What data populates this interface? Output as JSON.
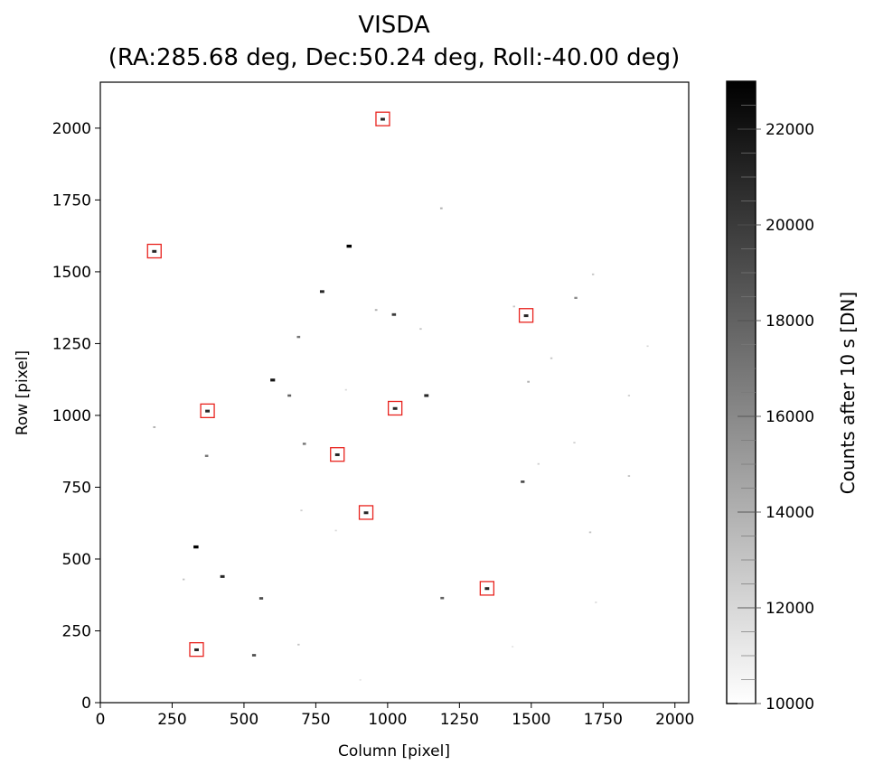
{
  "chart_data": {
    "type": "scatter",
    "title": "VISDA",
    "subtitle": "(RA:285.68 deg, Dec:50.24 deg, Roll:-40.00 deg)",
    "xlabel": "Column [pixel]",
    "ylabel": "Row [pixel]",
    "xlim": [
      0,
      2048
    ],
    "ylim": [
      0,
      2160
    ],
    "x_ticks": [
      0,
      250,
      500,
      750,
      1000,
      1250,
      1500,
      1750,
      2000
    ],
    "y_ticks": [
      0,
      250,
      500,
      750,
      1000,
      1250,
      1500,
      1750,
      2000
    ],
    "colorbar": {
      "label": "Counts after 10 s [DN]",
      "range": [
        10000,
        23000
      ],
      "ticks": [
        10000,
        12000,
        14000,
        16000,
        18000,
        20000,
        22000
      ],
      "colormap": "gray_r"
    },
    "marker_color": "#e8231e",
    "marked_stars": [
      {
        "x": 983,
        "y": 2032
      },
      {
        "x": 188,
        "y": 1572
      },
      {
        "x": 1482,
        "y": 1348
      },
      {
        "x": 373,
        "y": 1016
      },
      {
        "x": 1026,
        "y": 1025
      },
      {
        "x": 825,
        "y": 864
      },
      {
        "x": 925,
        "y": 662
      },
      {
        "x": 1346,
        "y": 398
      },
      {
        "x": 335,
        "y": 185
      }
    ],
    "stars": [
      {
        "x": 866,
        "y": 1590,
        "v": 23000
      },
      {
        "x": 772,
        "y": 1432,
        "v": 21000
      },
      {
        "x": 1022,
        "y": 1352,
        "v": 20000
      },
      {
        "x": 960,
        "y": 1368,
        "v": 14000
      },
      {
        "x": 690,
        "y": 1274,
        "v": 17000
      },
      {
        "x": 600,
        "y": 1124,
        "v": 22000
      },
      {
        "x": 658,
        "y": 1070,
        "v": 18000
      },
      {
        "x": 1135,
        "y": 1070,
        "v": 21000
      },
      {
        "x": 1115,
        "y": 1302,
        "v": 13000
      },
      {
        "x": 1187,
        "y": 1722,
        "v": 14000
      },
      {
        "x": 1655,
        "y": 1410,
        "v": 16000
      },
      {
        "x": 1715,
        "y": 1492,
        "v": 13000
      },
      {
        "x": 1570,
        "y": 1200,
        "v": 13000
      },
      {
        "x": 1490,
        "y": 1118,
        "v": 14000
      },
      {
        "x": 1470,
        "y": 770,
        "v": 19000
      },
      {
        "x": 1525,
        "y": 832,
        "v": 12500
      },
      {
        "x": 1650,
        "y": 906,
        "v": 12500
      },
      {
        "x": 1840,
        "y": 790,
        "v": 13000
      },
      {
        "x": 1840,
        "y": 1070,
        "v": 12500
      },
      {
        "x": 1905,
        "y": 1242,
        "v": 12000
      },
      {
        "x": 1705,
        "y": 594,
        "v": 13000
      },
      {
        "x": 1725,
        "y": 350,
        "v": 12000
      },
      {
        "x": 1190,
        "y": 365,
        "v": 18000
      },
      {
        "x": 855,
        "y": 1090,
        "v": 12000
      },
      {
        "x": 710,
        "y": 902,
        "v": 17000
      },
      {
        "x": 370,
        "y": 860,
        "v": 17000
      },
      {
        "x": 188,
        "y": 960,
        "v": 14000
      },
      {
        "x": 820,
        "y": 600,
        "v": 12000
      },
      {
        "x": 700,
        "y": 670,
        "v": 12500
      },
      {
        "x": 333,
        "y": 543,
        "v": 23000
      },
      {
        "x": 425,
        "y": 440,
        "v": 21000
      },
      {
        "x": 290,
        "y": 430,
        "v": 13000
      },
      {
        "x": 560,
        "y": 364,
        "v": 19000
      },
      {
        "x": 535,
        "y": 166,
        "v": 19000
      },
      {
        "x": 690,
        "y": 203,
        "v": 13000
      },
      {
        "x": 905,
        "y": 80,
        "v": 11500
      },
      {
        "x": 1440,
        "y": 1380,
        "v": 13000
      },
      {
        "x": 1435,
        "y": 196,
        "v": 11500
      }
    ]
  }
}
